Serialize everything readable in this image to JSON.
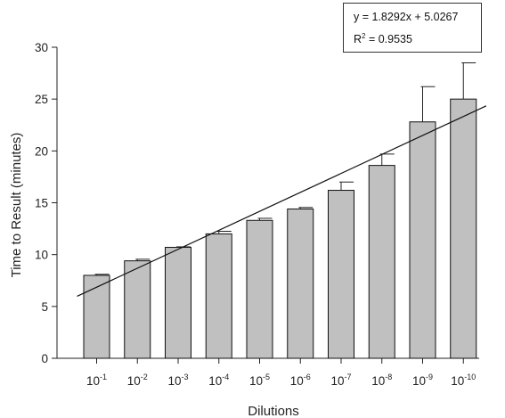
{
  "chart_data": {
    "type": "bar",
    "categories": [
      {
        "base": "10",
        "exp": "-1"
      },
      {
        "base": "10",
        "exp": "-2"
      },
      {
        "base": "10",
        "exp": "-3"
      },
      {
        "base": "10",
        "exp": "-4"
      },
      {
        "base": "10",
        "exp": "-5"
      },
      {
        "base": "10",
        "exp": "-6"
      },
      {
        "base": "10",
        "exp": "-7"
      },
      {
        "base": "10",
        "exp": "-8"
      },
      {
        "base": "10",
        "exp": "-9"
      },
      {
        "base": "10",
        "exp": "-10"
      }
    ],
    "values": [
      8.0,
      9.4,
      10.7,
      12.0,
      13.3,
      14.4,
      16.2,
      18.6,
      22.8,
      25.0
    ],
    "errors": [
      0.1,
      0.15,
      0.05,
      0.25,
      0.2,
      0.15,
      0.8,
      1.1,
      3.4,
      3.5
    ],
    "trendline": {
      "slope": 1.8292,
      "intercept": 5.0267
    },
    "equation_text": {
      "line1": "y = 1.8292x + 5.0267",
      "r2_prefix": "R",
      "r2_sup": "2",
      "r2_suffix": " = 0.9535"
    },
    "xlabel": "Dilutions",
    "ylabel": "Time to Result (minutes)",
    "ylim": [
      0,
      30
    ],
    "yticks": [
      0,
      5,
      10,
      15,
      20,
      25,
      30
    ],
    "grid": false,
    "bar_color": "#c0c0c0",
    "bar_edge_color": "#111111"
  }
}
